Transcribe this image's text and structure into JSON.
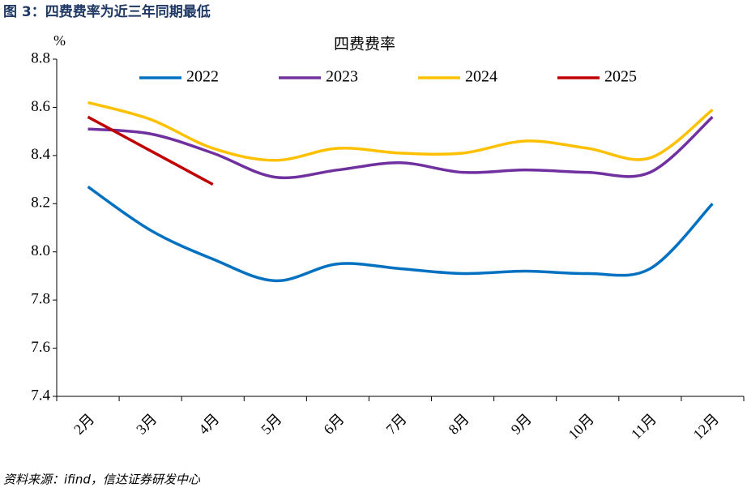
{
  "caption": "图 3：四费费率为近三年同期最低",
  "source": "资料来源：ifind，信达证券研发中心",
  "chart_data": {
    "type": "line",
    "title": "四费费率",
    "ylabel": "%",
    "categories": [
      "2月",
      "3月",
      "4月",
      "5月",
      "6月",
      "7月",
      "8月",
      "9月",
      "10月",
      "11月",
      "12月"
    ],
    "series": [
      {
        "name": "2022",
        "color": "#0070c0",
        "values": [
          8.27,
          8.09,
          7.97,
          7.88,
          7.95,
          7.93,
          7.91,
          7.92,
          7.91,
          7.93,
          8.2
        ]
      },
      {
        "name": "2023",
        "color": "#7030a0",
        "values": [
          8.51,
          8.49,
          8.41,
          8.31,
          8.34,
          8.37,
          8.33,
          8.34,
          8.33,
          8.33,
          8.56
        ]
      },
      {
        "name": "2024",
        "color": "#ffc000",
        "values": [
          8.62,
          8.55,
          8.43,
          8.38,
          8.43,
          8.41,
          8.41,
          8.46,
          8.43,
          8.39,
          8.59
        ]
      },
      {
        "name": "2025",
        "color": "#c00000",
        "values": [
          8.56,
          8.42,
          8.28,
          null,
          null,
          null,
          null,
          null,
          null,
          null,
          null
        ]
      }
    ],
    "ylim": [
      7.4,
      8.8
    ],
    "yticks": [
      7.4,
      7.6,
      7.8,
      {
        "value": 8,
        "label": "8.0"
      },
      8.2,
      8.4,
      8.6,
      8.8
    ],
    "grid": false,
    "legend": "top"
  }
}
